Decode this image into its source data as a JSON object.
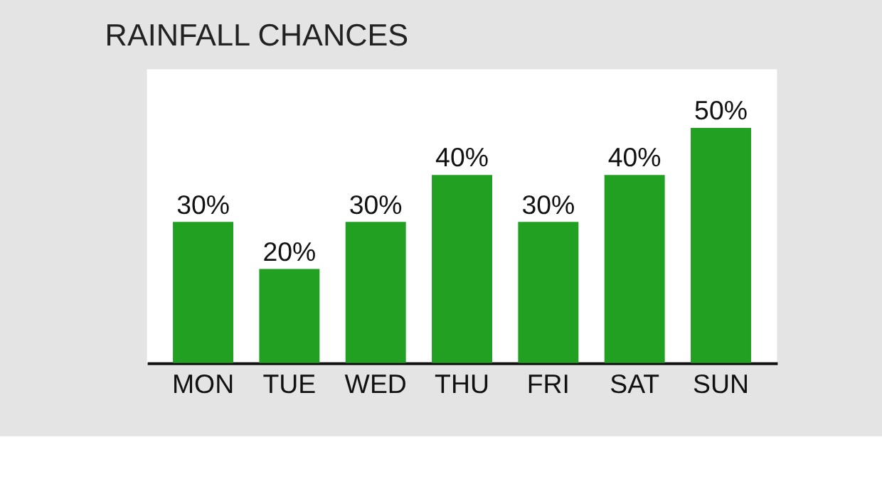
{
  "chart_data": {
    "type": "bar",
    "title": "RAINFALL CHANCES",
    "categories": [
      "MON",
      "TUE",
      "WED",
      "THU",
      "FRI",
      "SAT",
      "SUN"
    ],
    "values": [
      30,
      20,
      30,
      40,
      30,
      40,
      50
    ],
    "value_labels": [
      "30%",
      "20%",
      "30%",
      "40%",
      "30%",
      "40%",
      "50%"
    ],
    "color": "#22a022"
  }
}
